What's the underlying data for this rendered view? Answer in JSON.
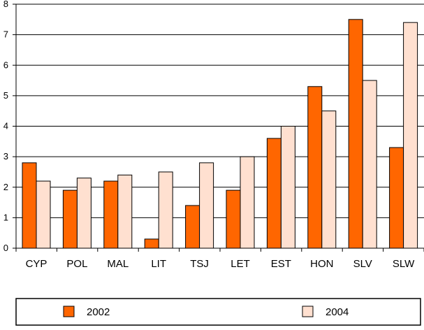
{
  "chart_data": {
    "type": "bar",
    "title": "",
    "xlabel": "",
    "ylabel": "",
    "categories": [
      "CYP",
      "POL",
      "MAL",
      "LIT",
      "TSJ",
      "LET",
      "EST",
      "HON",
      "SLV",
      "SLW"
    ],
    "series": [
      {
        "name": "2002",
        "color": "#ff6600",
        "values": [
          2.8,
          1.9,
          2.2,
          0.3,
          1.4,
          1.9,
          3.6,
          5.3,
          7.5,
          3.3
        ]
      },
      {
        "name": "2004",
        "color": "#ffe0d0",
        "values": [
          2.2,
          2.3,
          2.4,
          2.5,
          2.8,
          3.0,
          4.0,
          4.5,
          5.5,
          7.4
        ]
      }
    ],
    "ylim": [
      0,
      8
    ],
    "yticks": [
      0,
      1,
      2,
      3,
      4,
      5,
      6,
      7,
      8
    ],
    "grid": true,
    "legend_position": "bottom"
  }
}
